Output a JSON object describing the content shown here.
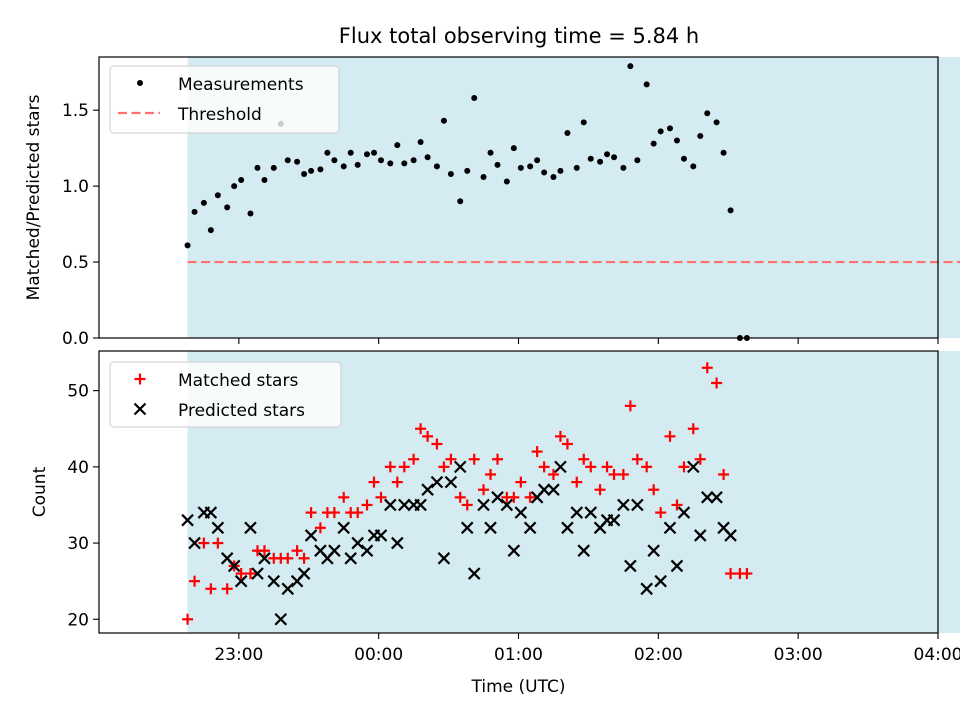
{
  "chart_data": {
    "type": "scatter",
    "title": "Flux total observing time = 5.84 h",
    "xlabel": "Time (UTC)",
    "x_ticks": [
      "23:00",
      "00:00",
      "01:00",
      "02:00",
      "03:00",
      "04:00"
    ],
    "shaded_span": [
      "22:38",
      "04:43"
    ],
    "shaded_color": "#d4ebf1",
    "panels": [
      {
        "ylabel": "Matched/Predicted stars",
        "ylim": [
          0,
          1.85
        ],
        "yticks": [
          "0.0",
          "0.5",
          "1.0",
          "1.5"
        ],
        "legend_placement": "upper-left",
        "threshold": {
          "name": "Threshold",
          "value": 0.5,
          "color": "#ff7070",
          "x_range": [
            "22:38",
            "04:57"
          ]
        },
        "series": [
          {
            "name": "Measurements",
            "color": "#000000",
            "marker": "dot",
            "points": [
              [
                "22:38",
                0.61
              ],
              [
                "22:41",
                0.83
              ],
              [
                "22:45",
                0.89
              ],
              [
                "22:48",
                0.71
              ],
              [
                "22:51",
                0.94
              ],
              [
                "22:55",
                0.86
              ],
              [
                "22:58",
                1.0
              ],
              [
                "23:01",
                1.04
              ],
              [
                "23:05",
                0.82
              ],
              [
                "23:08",
                1.12
              ],
              [
                "23:11",
                1.04
              ],
              [
                "23:15",
                1.12
              ],
              [
                "23:18",
                1.41
              ],
              [
                "23:21",
                1.17
              ],
              [
                "23:25",
                1.16
              ],
              [
                "23:28",
                1.08
              ],
              [
                "23:31",
                1.1
              ],
              [
                "23:35",
                1.11
              ],
              [
                "23:38",
                1.22
              ],
              [
                "23:41",
                1.17
              ],
              [
                "23:45",
                1.13
              ],
              [
                "23:48",
                1.22
              ],
              [
                "23:51",
                1.14
              ],
              [
                "23:55",
                1.21
              ],
              [
                "23:58",
                1.22
              ],
              [
                "00:01",
                1.17
              ],
              [
                "00:05",
                1.15
              ],
              [
                "00:08",
                1.27
              ],
              [
                "00:11",
                1.15
              ],
              [
                "00:15",
                1.17
              ],
              [
                "00:18",
                1.29
              ],
              [
                "00:21",
                1.19
              ],
              [
                "00:25",
                1.13
              ],
              [
                "00:28",
                1.43
              ],
              [
                "00:31",
                1.08
              ],
              [
                "00:35",
                0.9
              ],
              [
                "00:38",
                1.1
              ],
              [
                "00:41",
                1.58
              ],
              [
                "00:45",
                1.06
              ],
              [
                "00:48",
                1.22
              ],
              [
                "00:51",
                1.14
              ],
              [
                "00:55",
                1.03
              ],
              [
                "00:58",
                1.25
              ],
              [
                "01:01",
                1.12
              ],
              [
                "01:05",
                1.13
              ],
              [
                "01:08",
                1.17
              ],
              [
                "01:11",
                1.09
              ],
              [
                "01:15",
                1.06
              ],
              [
                "01:18",
                1.1
              ],
              [
                "01:21",
                1.35
              ],
              [
                "01:25",
                1.12
              ],
              [
                "01:28",
                1.42
              ],
              [
                "01:31",
                1.18
              ],
              [
                "01:35",
                1.16
              ],
              [
                "01:38",
                1.21
              ],
              [
                "01:41",
                1.19
              ],
              [
                "01:45",
                1.12
              ],
              [
                "01:48",
                1.79
              ],
              [
                "01:51",
                1.17
              ],
              [
                "01:55",
                1.67
              ],
              [
                "01:58",
                1.28
              ],
              [
                "02:01",
                1.36
              ],
              [
                "02:05",
                1.38
              ],
              [
                "02:08",
                1.3
              ],
              [
                "02:11",
                1.18
              ],
              [
                "02:15",
                1.13
              ],
              [
                "02:18",
                1.33
              ],
              [
                "02:21",
                1.48
              ],
              [
                "02:25",
                1.42
              ],
              [
                "02:28",
                1.22
              ],
              [
                "02:31",
                0.84
              ],
              [
                "02:35",
                0.0
              ],
              [
                "02:38",
                0.0
              ]
            ]
          }
        ]
      },
      {
        "ylabel": "Count",
        "ylim": [
          18.2,
          55.2
        ],
        "yticks": [
          "20",
          "30",
          "40",
          "50"
        ],
        "legend_placement": "upper-left",
        "series": [
          {
            "name": "Matched stars",
            "color": "#ff0000",
            "marker": "plus",
            "points": [
              [
                "22:38",
                20
              ],
              [
                "22:41",
                25
              ],
              [
                "22:45",
                30
              ],
              [
                "22:48",
                24
              ],
              [
                "22:51",
                30
              ],
              [
                "22:55",
                24
              ],
              [
                "22:58",
                27
              ],
              [
                "23:01",
                26
              ],
              [
                "23:05",
                26
              ],
              [
                "23:08",
                29
              ],
              [
                "23:11",
                29
              ],
              [
                "23:15",
                28
              ],
              [
                "23:18",
                28
              ],
              [
                "23:21",
                28
              ],
              [
                "23:25",
                29
              ],
              [
                "23:28",
                28
              ],
              [
                "23:31",
                34
              ],
              [
                "23:35",
                32
              ],
              [
                "23:38",
                34
              ],
              [
                "23:41",
                34
              ],
              [
                "23:45",
                36
              ],
              [
                "23:48",
                34
              ],
              [
                "23:51",
                34
              ],
              [
                "23:55",
                35
              ],
              [
                "23:58",
                38
              ],
              [
                "00:01",
                36
              ],
              [
                "00:05",
                40
              ],
              [
                "00:08",
                38
              ],
              [
                "00:11",
                40
              ],
              [
                "00:15",
                41
              ],
              [
                "00:18",
                45
              ],
              [
                "00:21",
                44
              ],
              [
                "00:25",
                43
              ],
              [
                "00:28",
                40
              ],
              [
                "00:31",
                41
              ],
              [
                "00:35",
                36
              ],
              [
                "00:38",
                35
              ],
              [
                "00:41",
                41
              ],
              [
                "00:45",
                37
              ],
              [
                "00:48",
                39
              ],
              [
                "00:51",
                41
              ],
              [
                "00:55",
                36
              ],
              [
                "00:58",
                36
              ],
              [
                "01:01",
                38
              ],
              [
                "01:05",
                36
              ],
              [
                "01:08",
                42
              ],
              [
                "01:11",
                40
              ],
              [
                "01:15",
                39
              ],
              [
                "01:18",
                44
              ],
              [
                "01:21",
                43
              ],
              [
                "01:25",
                38
              ],
              [
                "01:28",
                41
              ],
              [
                "01:31",
                40
              ],
              [
                "01:35",
                37
              ],
              [
                "01:38",
                40
              ],
              [
                "01:41",
                39
              ],
              [
                "01:45",
                39
              ],
              [
                "01:48",
                48
              ],
              [
                "01:51",
                41
              ],
              [
                "01:55",
                40
              ],
              [
                "01:58",
                37
              ],
              [
                "02:01",
                34
              ],
              [
                "02:05",
                44
              ],
              [
                "02:08",
                35
              ],
              [
                "02:11",
                40
              ],
              [
                "02:15",
                45
              ],
              [
                "02:18",
                41
              ],
              [
                "02:21",
                53
              ],
              [
                "02:25",
                51
              ],
              [
                "02:28",
                39
              ],
              [
                "02:31",
                26
              ],
              [
                "02:35",
                26
              ],
              [
                "02:38",
                26
              ]
            ]
          },
          {
            "name": "Predicted stars",
            "color": "#000000",
            "marker": "x",
            "points": [
              [
                "22:38",
                33
              ],
              [
                "22:41",
                30
              ],
              [
                "22:45",
                34
              ],
              [
                "22:48",
                34
              ],
              [
                "22:51",
                32
              ],
              [
                "22:55",
                28
              ],
              [
                "22:58",
                27
              ],
              [
                "23:01",
                25
              ],
              [
                "23:05",
                32
              ],
              [
                "23:08",
                26
              ],
              [
                "23:11",
                28
              ],
              [
                "23:15",
                25
              ],
              [
                "23:18",
                20
              ],
              [
                "23:21",
                24
              ],
              [
                "23:25",
                25
              ],
              [
                "23:28",
                26
              ],
              [
                "23:31",
                31
              ],
              [
                "23:35",
                29
              ],
              [
                "23:38",
                28
              ],
              [
                "23:41",
                29
              ],
              [
                "23:45",
                32
              ],
              [
                "23:48",
                28
              ],
              [
                "23:51",
                30
              ],
              [
                "23:55",
                29
              ],
              [
                "23:58",
                31
              ],
              [
                "00:01",
                31
              ],
              [
                "00:05",
                35
              ],
              [
                "00:08",
                30
              ],
              [
                "00:11",
                35
              ],
              [
                "00:15",
                35
              ],
              [
                "00:18",
                35
              ],
              [
                "00:21",
                37
              ],
              [
                "00:25",
                38
              ],
              [
                "00:28",
                28
              ],
              [
                "00:31",
                38
              ],
              [
                "00:35",
                40
              ],
              [
                "00:38",
                32
              ],
              [
                "00:41",
                26
              ],
              [
                "00:45",
                35
              ],
              [
                "00:48",
                32
              ],
              [
                "00:51",
                36
              ],
              [
                "00:55",
                35
              ],
              [
                "00:58",
                29
              ],
              [
                "01:01",
                34
              ],
              [
                "01:05",
                32
              ],
              [
                "01:08",
                36
              ],
              [
                "01:11",
                37
              ],
              [
                "01:15",
                37
              ],
              [
                "01:18",
                40
              ],
              [
                "01:21",
                32
              ],
              [
                "01:25",
                34
              ],
              [
                "01:28",
                29
              ],
              [
                "01:31",
                34
              ],
              [
                "01:35",
                32
              ],
              [
                "01:38",
                33
              ],
              [
                "01:41",
                33
              ],
              [
                "01:45",
                35
              ],
              [
                "01:48",
                27
              ],
              [
                "01:51",
                35
              ],
              [
                "01:55",
                24
              ],
              [
                "01:58",
                29
              ],
              [
                "02:01",
                25
              ],
              [
                "02:05",
                32
              ],
              [
                "02:08",
                27
              ],
              [
                "02:11",
                34
              ],
              [
                "02:15",
                40
              ],
              [
                "02:18",
                31
              ],
              [
                "02:21",
                36
              ],
              [
                "02:25",
                36
              ],
              [
                "02:28",
                32
              ],
              [
                "02:31",
                31
              ]
            ]
          }
        ]
      }
    ]
  }
}
